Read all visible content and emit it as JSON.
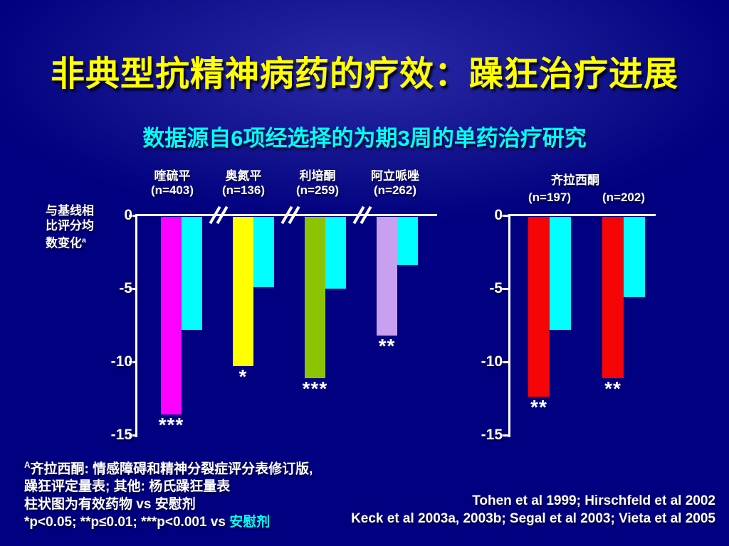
{
  "slide": {
    "title": "非典型抗精神病药的疗效：躁狂治疗进展",
    "subtitle": "数据源自6项经选择的为期3周的单药治疗研究"
  },
  "y_axis_title": {
    "line1": "与基线相",
    "line2": "比评分均",
    "line3": "数变化",
    "sup": "a"
  },
  "chart_data": [
    {
      "type": "bar",
      "name": "atypical-antipsychotics-vs-placebo",
      "ylabel": "与基线相比评分均数变化a",
      "ylim": [
        -15,
        0
      ],
      "yticks": [
        0,
        -5,
        -10,
        -15
      ],
      "grid": false,
      "axis_breaks_between_groups": true,
      "placebo_color": "#00ffff",
      "groups": [
        {
          "drug": "喹硫平",
          "n_label": "(n=403)",
          "drug_value": -13.6,
          "placebo_value": -7.8,
          "significance": "***",
          "drug_color": "#ff00ff"
        },
        {
          "drug": "奥氮平",
          "n_label": "(n=136)",
          "drug_value": -10.3,
          "placebo_value": -4.9,
          "significance": "*",
          "drug_color": "#ffff00"
        },
        {
          "drug": "利培酮",
          "n_label": "(n=259)",
          "drug_value": -11.1,
          "placebo_value": -5.0,
          "significance": "***",
          "drug_color": "#8cc404"
        },
        {
          "drug": "阿立哌唑",
          "n_label": "(n=262)",
          "drug_value": -8.2,
          "placebo_value": -3.4,
          "significance": "**",
          "drug_color": "#c9a0ef"
        }
      ]
    },
    {
      "type": "bar",
      "name": "ziprasidone-vs-placebo",
      "title": "齐拉西酮",
      "ylim": [
        -15,
        0
      ],
      "yticks": [
        0,
        -5,
        -10,
        -15
      ],
      "grid": false,
      "placebo_color": "#00ffff",
      "groups": [
        {
          "n_label": "(n=197)",
          "drug_value": -12.4,
          "placebo_value": -7.8,
          "significance": "**",
          "drug_color": "#f50505"
        },
        {
          "n_label": "(n=202)",
          "drug_value": -11.1,
          "placebo_value": -5.6,
          "significance": "**",
          "drug_color": "#f50505"
        }
      ]
    }
  ],
  "footnotes": {
    "sup1": "A",
    "line1": "齐拉西酮: 情感障碍和精神分裂症评分表修订版,",
    "line2": "躁狂评定量表; 其他: 杨氏躁狂量表",
    "line3": "柱状图为有效药物 vs 安慰剂",
    "line4_main": "*p<0.05; **p≤0.01; ***p<0.001 vs ",
    "line4_highlight": "安慰剂"
  },
  "references": {
    "line1": "Tohen et al 1999; Hirschfeld et al 2002",
    "line2": "Keck et al 2003a, 2003b; Segal et al 2003; Vieta et al 2005"
  },
  "colors": {
    "background": "#000080",
    "title": "#ffff00",
    "subtitle": "#00ffff",
    "axis": "#ffffff",
    "significance_marks": "#ffffff"
  }
}
